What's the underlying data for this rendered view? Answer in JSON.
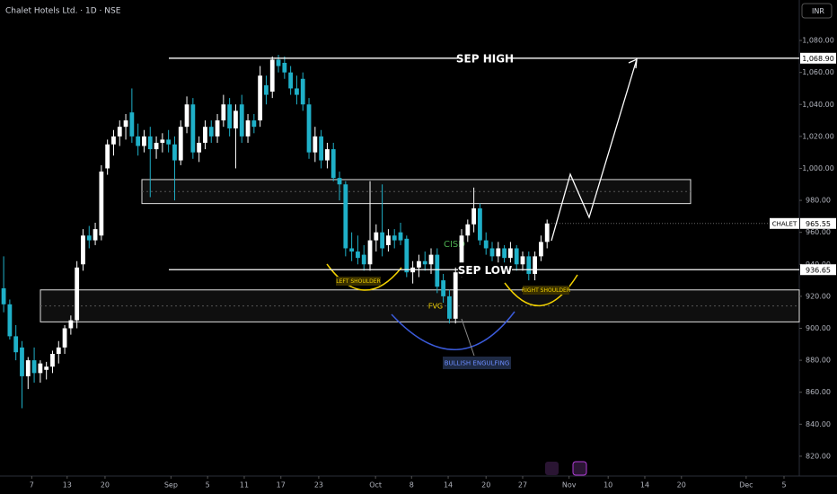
{
  "chart_data": {
    "type": "candlestick",
    "title": "Chalet Hotels Ltd. · 1D · NSE",
    "currency": "INR",
    "up_color": "#ffffff",
    "down_color": "#1fb0c8",
    "ohlc": [
      [
        925,
        945,
        910,
        915
      ],
      [
        915,
        918,
        893,
        895
      ],
      [
        895,
        902,
        880,
        885
      ],
      [
        888,
        892,
        850,
        870
      ],
      [
        870,
        882,
        862,
        880
      ],
      [
        880,
        888,
        866,
        872
      ],
      [
        872,
        880,
        866,
        878
      ],
      [
        874,
        879,
        868,
        876
      ],
      [
        876,
        886,
        872,
        884
      ],
      [
        884,
        892,
        878,
        888
      ],
      [
        888,
        902,
        884,
        900
      ],
      [
        900,
        908,
        896,
        905
      ],
      [
        905,
        942,
        900,
        938
      ],
      [
        940,
        962,
        936,
        958
      ],
      [
        958,
        964,
        950,
        955
      ],
      [
        955,
        966,
        952,
        962
      ],
      [
        958,
        1002,
        955,
        998
      ],
      [
        1000,
        1018,
        996,
        1015
      ],
      [
        1015,
        1024,
        1008,
        1020
      ],
      [
        1020,
        1030,
        1014,
        1026
      ],
      [
        1026,
        1034,
        1018,
        1030
      ],
      [
        1035,
        1050,
        1016,
        1020
      ],
      [
        1020,
        1028,
        1008,
        1014
      ],
      [
        1014,
        1024,
        1010,
        1020
      ],
      [
        1020,
        1026,
        982,
        1012
      ],
      [
        1012,
        1020,
        1006,
        1016
      ],
      [
        1016,
        1022,
        1010,
        1018
      ],
      [
        1018,
        1024,
        1010,
        1015
      ],
      [
        1015,
        1020,
        980,
        1005
      ],
      [
        1005,
        1030,
        1002,
        1026
      ],
      [
        1026,
        1045,
        1022,
        1040
      ],
      [
        1040,
        1044,
        1006,
        1010
      ],
      [
        1010,
        1020,
        1004,
        1016
      ],
      [
        1016,
        1030,
        1012,
        1026
      ],
      [
        1026,
        1030,
        1016,
        1020
      ],
      [
        1020,
        1034,
        1016,
        1030
      ],
      [
        1030,
        1046,
        1026,
        1040
      ],
      [
        1040,
        1044,
        1020,
        1025
      ],
      [
        1025,
        1040,
        1000,
        1036
      ],
      [
        1040,
        1046,
        1016,
        1020
      ],
      [
        1020,
        1034,
        1016,
        1030
      ],
      [
        1030,
        1034,
        1022,
        1026
      ],
      [
        1030,
        1064,
        1026,
        1058
      ],
      [
        1052,
        1058,
        1040,
        1046
      ],
      [
        1048,
        1070,
        1044,
        1068
      ],
      [
        1068,
        1071,
        1060,
        1064
      ],
      [
        1066,
        1070,
        1056,
        1060
      ],
      [
        1060,
        1064,
        1046,
        1050
      ],
      [
        1050,
        1058,
        1040,
        1046
      ],
      [
        1056,
        1060,
        1036,
        1040
      ],
      [
        1040,
        1044,
        1006,
        1010
      ],
      [
        1010,
        1026,
        1004,
        1020
      ],
      [
        1020,
        1024,
        1000,
        1005
      ],
      [
        1005,
        1016,
        1000,
        1012
      ],
      [
        1012,
        1016,
        992,
        994
      ],
      [
        994,
        998,
        980,
        990
      ],
      [
        990,
        992,
        945,
        950
      ],
      [
        950,
        960,
        942,
        948
      ],
      [
        948,
        958,
        940,
        944
      ],
      [
        946,
        952,
        936,
        940
      ],
      [
        940,
        992,
        936,
        955
      ],
      [
        955,
        965,
        948,
        960
      ],
      [
        960,
        990,
        945,
        950
      ],
      [
        952,
        962,
        948,
        958
      ],
      [
        958,
        962,
        950,
        955
      ],
      [
        960,
        966,
        952,
        955
      ],
      [
        956,
        958,
        932,
        935
      ],
      [
        935,
        942,
        928,
        938
      ],
      [
        938,
        946,
        932,
        942
      ],
      [
        942,
        948,
        936,
        940
      ],
      [
        940,
        950,
        934,
        946
      ],
      [
        946,
        950,
        922,
        926
      ],
      [
        930,
        934,
        916,
        920
      ],
      [
        920,
        924,
        903,
        906
      ],
      [
        906,
        938,
        903,
        935
      ],
      [
        935,
        962,
        932,
        958
      ],
      [
        958,
        968,
        954,
        965
      ],
      [
        965,
        988,
        960,
        975
      ],
      [
        975,
        978,
        952,
        955
      ],
      [
        955,
        960,
        946,
        950
      ],
      [
        950,
        954,
        942,
        945
      ],
      [
        945,
        954,
        940,
        950
      ],
      [
        950,
        952,
        940,
        944
      ],
      [
        944,
        954,
        940,
        950
      ],
      [
        950,
        952,
        936,
        940
      ],
      [
        940,
        948,
        936,
        945
      ],
      [
        945,
        948,
        930,
        934
      ],
      [
        934,
        948,
        930,
        945
      ],
      [
        945,
        958,
        942,
        954
      ],
      [
        954,
        968,
        950,
        965.55
      ]
    ],
    "xlim": [
      -0.6,
      130.3
    ],
    "xticks": [
      {
        "value": 4.6,
        "label": "7"
      },
      {
        "value": 10.4,
        "label": "13"
      },
      {
        "value": 16.6,
        "label": "20"
      },
      {
        "value": 27.4,
        "label": "Sep"
      },
      {
        "value": 33.4,
        "label": "5"
      },
      {
        "value": 39.4,
        "label": "11"
      },
      {
        "value": 45.4,
        "label": "17"
      },
      {
        "value": 51.6,
        "label": "23"
      },
      {
        "value": 60.9,
        "label": "Oct"
      },
      {
        "value": 66.8,
        "label": "8"
      },
      {
        "value": 72.8,
        "label": "14"
      },
      {
        "value": 79.0,
        "label": "20"
      },
      {
        "value": 85.0,
        "label": "27"
      },
      {
        "value": 92.6,
        "label": "Nov"
      },
      {
        "value": 99.0,
        "label": "10"
      },
      {
        "value": 105.0,
        "label": "14"
      },
      {
        "value": 111.0,
        "label": "20"
      },
      {
        "value": 121.6,
        "label": "Dec"
      },
      {
        "value": 127.8,
        "label": "5"
      }
    ],
    "ylim": [
      807.6,
      1105.3
    ],
    "yticks": [
      {
        "value": 820,
        "label": "820.00"
      },
      {
        "value": 840,
        "label": "840.00"
      },
      {
        "value": 860,
        "label": "860.00"
      },
      {
        "value": 880,
        "label": "880.00"
      },
      {
        "value": 900,
        "label": "900.00"
      },
      {
        "value": 920,
        "label": "920.00"
      },
      {
        "value": 940,
        "label": "940.00"
      },
      {
        "value": 960,
        "label": "960.00"
      },
      {
        "value": 980,
        "label": "980.00"
      },
      {
        "value": 1000,
        "label": "1,000.00"
      },
      {
        "value": 1020,
        "label": "1,020.00"
      },
      {
        "value": 1040,
        "label": "1,040.00"
      },
      {
        "value": 1060,
        "label": "1,060.00"
      },
      {
        "value": 1080,
        "label": "1,080.00"
      }
    ],
    "levels": [
      {
        "name": "SEP HIGH",
        "value": 1068.9,
        "label": "1,068.90"
      },
      {
        "name": "SEP LOW",
        "value": 936.65,
        "label": "936.65"
      }
    ],
    "last_price": {
      "name": "CHALET",
      "value": 965.55,
      "label": "965.55"
    },
    "zones": [
      {
        "top": 993,
        "bottom": 978
      },
      {
        "top": 924,
        "bottom": 904
      }
    ],
    "annotations": [
      "LEFT SHOULDER",
      "RIGHT SHOULDER",
      "FVG",
      "CISD",
      "BULLISH ENGULFING"
    ]
  }
}
